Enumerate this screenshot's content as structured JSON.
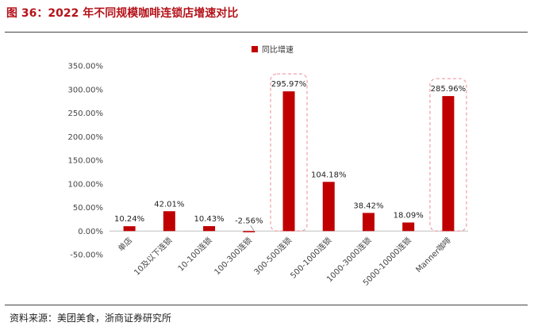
{
  "figure_title": "图 36：2022 年不同规模咖啡连锁店增速对比",
  "source": "资料来源：美团美食，浙商证券研究所",
  "colors": {
    "bar": "#c00000",
    "title": "#b4131a",
    "highlight": "#f0a0a8"
  },
  "chart_data": {
    "type": "bar",
    "title": "",
    "xlabel": "",
    "ylabel": "",
    "ylim": [
      -50,
      350
    ],
    "yticks": [
      -50,
      0,
      50,
      100,
      150,
      200,
      250,
      300,
      350
    ],
    "ytick_labels": [
      "-50.00%",
      "0.00%",
      "50.00%",
      "100.00%",
      "150.00%",
      "200.00%",
      "250.00%",
      "300.00%",
      "350.00%"
    ],
    "categories": [
      "单店",
      "10及以下连锁",
      "10-100连锁",
      "100-300连锁",
      "300-500连锁",
      "500-1000连锁",
      "1000-3000连锁",
      "5000-10000连锁",
      "Manner咖啡"
    ],
    "series": [
      {
        "name": "同比增速",
        "values": [
          10.24,
          42.01,
          10.43,
          -2.56,
          295.97,
          104.18,
          38.42,
          18.09,
          285.96
        ],
        "data_labels": [
          "10.24%",
          "42.01%",
          "10.43%",
          "-2.56%",
          "295.97%",
          "104.18%",
          "38.42%",
          "18.09%",
          "285.96%"
        ]
      }
    ],
    "highlighted_categories": [
      "300-500连锁",
      "Manner咖啡"
    ],
    "legend": {
      "position": "top-center",
      "entries": [
        "同比增速"
      ]
    },
    "grid": false
  }
}
